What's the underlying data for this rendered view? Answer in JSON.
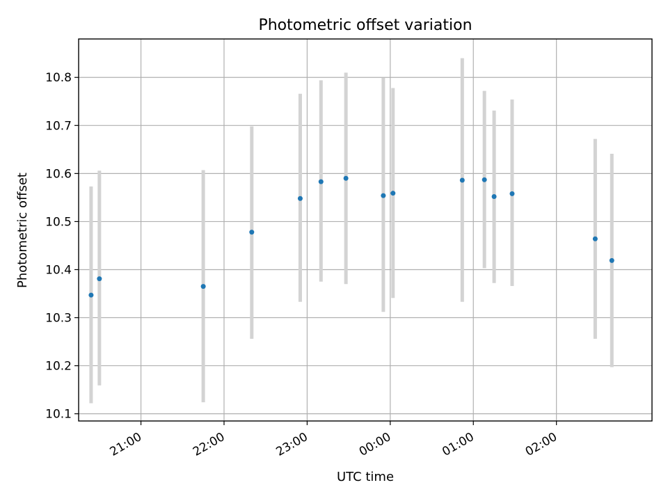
{
  "chart_data": {
    "type": "scatter",
    "title": "Photometric offset variation",
    "xlabel": "UTC time",
    "ylabel": "Photometric offset",
    "x_ticks": [
      "21:00",
      "22:00",
      "23:00",
      "00:00",
      "01:00",
      "02:00"
    ],
    "x_tick_hours": [
      21,
      22,
      23,
      24,
      25,
      26
    ],
    "xlim_hours": [
      20.25,
      27.15
    ],
    "y_ticks": [
      "10.1",
      "10.2",
      "10.3",
      "10.4",
      "10.5",
      "10.6",
      "10.7",
      "10.8"
    ],
    "ylim": [
      10.085,
      10.88
    ],
    "grid": true,
    "marker_color": "#1f77b4",
    "errorbar_color": "#d3d3d3",
    "points": [
      {
        "x": "20:24",
        "y": 10.347,
        "lo": 10.122,
        "hi": 10.573
      },
      {
        "x": "20:30",
        "y": 10.381,
        "lo": 10.159,
        "hi": 10.606
      },
      {
        "x": "21:45",
        "y": 10.365,
        "lo": 10.124,
        "hi": 10.607
      },
      {
        "x": "22:20",
        "y": 10.478,
        "lo": 10.256,
        "hi": 10.698
      },
      {
        "x": "22:55",
        "y": 10.548,
        "lo": 10.333,
        "hi": 10.766
      },
      {
        "x": "23:10",
        "y": 10.583,
        "lo": 10.375,
        "hi": 10.794
      },
      {
        "x": "23:28",
        "y": 10.59,
        "lo": 10.37,
        "hi": 10.81
      },
      {
        "x": "23:55",
        "y": 10.554,
        "lo": 10.312,
        "hi": 10.799
      },
      {
        "x": "00:02",
        "y": 10.559,
        "lo": 10.341,
        "hi": 10.778
      },
      {
        "x": "00:52",
        "y": 10.586,
        "lo": 10.333,
        "hi": 10.84
      },
      {
        "x": "01:08",
        "y": 10.587,
        "lo": 10.403,
        "hi": 10.772
      },
      {
        "x": "01:15",
        "y": 10.552,
        "lo": 10.372,
        "hi": 10.731
      },
      {
        "x": "01:28",
        "y": 10.558,
        "lo": 10.366,
        "hi": 10.754
      },
      {
        "x": "02:28",
        "y": 10.464,
        "lo": 10.256,
        "hi": 10.672
      },
      {
        "x": "02:40",
        "y": 10.419,
        "lo": 10.197,
        "hi": 10.641
      }
    ]
  }
}
